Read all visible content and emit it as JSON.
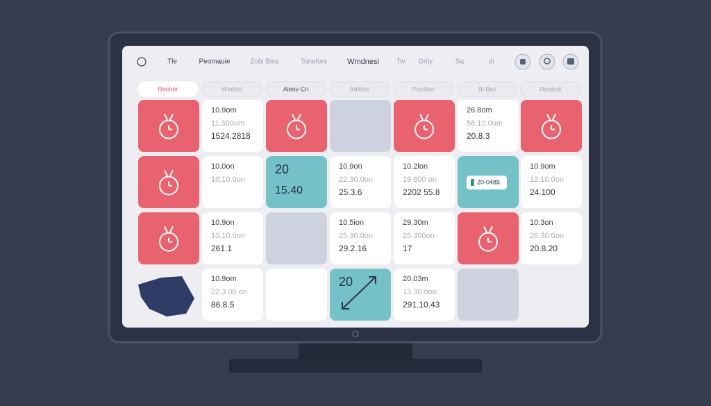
{
  "nav": {
    "items": [
      "Tle",
      "Peomauie",
      "Zobi Bios",
      "Tonefors",
      "Wmdnesi",
      "Tw",
      "Drity",
      "Sa",
      "di"
    ]
  },
  "tabs": [
    "Rocher",
    "Wirdsst",
    "Aleov Cn",
    "Adlitios",
    "Pocilliov",
    "Bl Bes",
    "Reqoult"
  ],
  "cells": [
    {
      "lines": [
        "10.9om",
        "11.300om",
        "1524.2818"
      ]
    },
    {
      "lines": [
        "26.8om",
        "56.10.0om",
        "20.8.3"
      ]
    },
    {
      "lines": [
        "10.0on",
        "10.10.0on"
      ]
    },
    {
      "lines": [
        "20",
        "15.40"
      ]
    },
    {
      "lines": [
        "10.9on",
        "22.30.0on",
        "25.3.6"
      ]
    },
    {
      "lines": [
        "10.2lon",
        "19.800 on",
        "2202 55.8"
      ]
    },
    {
      "lines": [
        "20-0485"
      ]
    },
    {
      "lines": [
        "10.9om",
        "12.10.0on",
        "24.100"
      ]
    },
    {
      "lines": [
        "10.9on",
        "10.10.0on",
        "261.1"
      ]
    },
    {
      "lines": [
        "10.5ion",
        "25.30.0on",
        "29.2.16"
      ]
    },
    {
      "lines": [
        "29.30m",
        "25.300on",
        "17"
      ]
    },
    {
      "lines": [
        "10.3on",
        "26.30.0on",
        "20.8.20"
      ]
    },
    {
      "lines": [
        "10.9om",
        "22.3.00 on",
        "86.8.5"
      ]
    },
    {
      "lines": [
        "20"
      ]
    },
    {
      "lines": [
        "20.03m",
        "13.30.0on",
        "291.10.43"
      ]
    }
  ]
}
